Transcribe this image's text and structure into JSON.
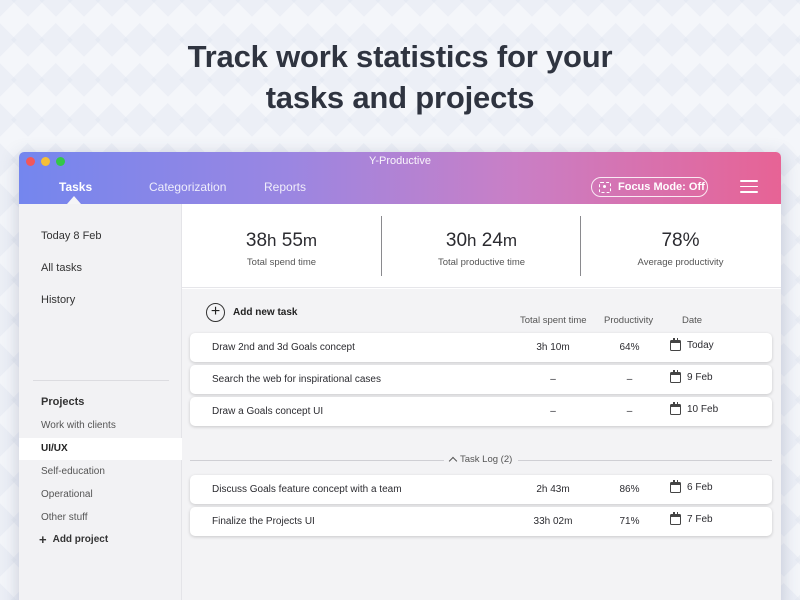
{
  "headline": {
    "line1": "Track work statistics for your",
    "line2": "tasks and projects"
  },
  "window": {
    "title": "Y-Productive"
  },
  "nav": {
    "tabs": [
      "Tasks",
      "Categorization",
      "Reports"
    ],
    "active": "Tasks",
    "focus_mode_label": "Focus Mode: Off"
  },
  "sidebar": {
    "links": [
      "Today 8 Feb",
      "All tasks",
      "History"
    ],
    "projects_heading": "Projects",
    "projects": [
      "Work with clients",
      "UI/UX",
      "Self-education",
      "Operational",
      "Other stuff"
    ],
    "selected_project": "UI/UX",
    "add_project_label": "Add project"
  },
  "stats": [
    {
      "hours": "38",
      "h_unit": "h",
      "minutes": "55",
      "m_unit": "m",
      "label": "Total spend time"
    },
    {
      "hours": "30",
      "h_unit": "h",
      "minutes": "24",
      "m_unit": "m",
      "label": "Total productive time"
    },
    {
      "value": "78%",
      "label": "Average productivity"
    }
  ],
  "tasks": {
    "add_label": "Add new task",
    "columns": {
      "spent": "Total spent time",
      "productivity": "Productivity",
      "date": "Date"
    },
    "rows": [
      {
        "name": "Draw 2nd and 3d Goals concept",
        "spent": "3h 10m",
        "productivity": "64%",
        "date": "Today"
      },
      {
        "name": "Search the web for inspirational cases",
        "spent": "–",
        "productivity": "–",
        "date": "9 Feb"
      },
      {
        "name": "Draw a Goals concept UI",
        "spent": "–",
        "productivity": "–",
        "date": "10 Feb"
      }
    ]
  },
  "task_log": {
    "label": "Task Log (2)",
    "rows": [
      {
        "name": "Discuss Goals feature concept with a team",
        "spent": "2h 43m",
        "productivity": "86%",
        "date": "6 Feb"
      },
      {
        "name": "Finalize the Projects UI",
        "spent": "33h 02m",
        "productivity": "71%",
        "date": "7 Feb"
      }
    ]
  },
  "colors": {
    "header_gradient": [
      "#7486ee",
      "#c97fc6",
      "#e76395"
    ],
    "sidebar_bg": "#f2f2f4",
    "content_bg": "#f3f3f5"
  }
}
